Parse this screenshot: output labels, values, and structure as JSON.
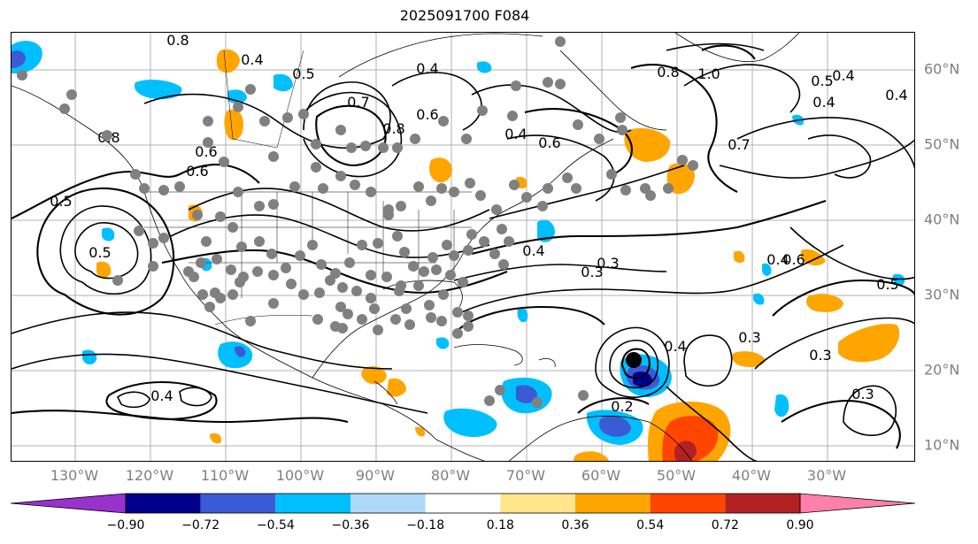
{
  "title": "2025091700 F084",
  "lon_labels": [
    "130°W",
    "120°W",
    "110°W",
    "100°W",
    "90°W",
    "80°W",
    "70°W",
    "60°W",
    "50°W",
    "40°W",
    "30°W"
  ],
  "lat_labels": [
    "60°N",
    "50°N",
    "40°N",
    "30°N",
    "20°N",
    "10°N"
  ],
  "contour_labels": [
    "0.8",
    "0.8",
    "0.6",
    "0.5",
    "0.4",
    "0.7",
    "0.8",
    "0.6",
    "0.5",
    "0.4",
    "0.6",
    "0.4",
    "0.3",
    "0.8",
    "1.0",
    "0.6",
    "0.7",
    "0.5",
    "0.4",
    "0.4",
    "0.3",
    "0.4",
    "0.6",
    "0.5",
    "0.3",
    "0.4",
    "0.2",
    "0.3",
    "0.4",
    "0.4",
    "0.4",
    "0.3",
    "0.5"
  ],
  "colorbar": {
    "ticks": [
      "−0.90",
      "−0.72",
      "−0.54",
      "−0.36",
      "−0.18",
      "0.18",
      "0.36",
      "0.54",
      "0.72",
      "0.90"
    ],
    "colors": [
      "#9932cc",
      "#00008b",
      "#3b5bd6",
      "#00bfff",
      "#add8f8",
      "#ffffff",
      "#ffe68c",
      "#ffa500",
      "#ff4500",
      "#b22222",
      "#ff80ab"
    ]
  },
  "colors": {
    "station_dot": "#808080",
    "contour": "#000000",
    "grid": "#b0b0b0",
    "storm_marker": "#000000"
  }
}
